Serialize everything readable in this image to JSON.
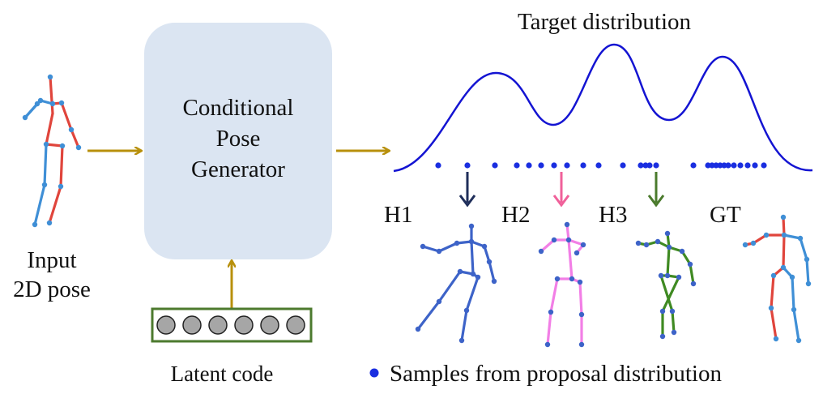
{
  "input_label": {
    "line1": "Input",
    "line2": "2D pose"
  },
  "generator_label": {
    "line1": "Conditional",
    "line2": "Pose",
    "line3": "Generator"
  },
  "latent_label": "Latent code",
  "latent_cells": 6,
  "target_label": "Target distribution",
  "hypotheses": [
    {
      "label": "H1",
      "color": "#1f2e5a"
    },
    {
      "label": "H2",
      "color": "#f0609a"
    },
    {
      "label": "H3",
      "color": "#4a7a2c"
    },
    {
      "label": "GT",
      "color": ""
    }
  ],
  "legend_label": "Samples from proposal distribution",
  "colors": {
    "arrow_gold": "#b8900c",
    "box_fill": "#dbe5f2",
    "latent_border": "#4c7a2e",
    "latent_cell": "#a6a6a6",
    "curve": "#1414d2",
    "sample_dot": "#1a2ee0",
    "pose_blue": "#3f8fd6",
    "pose_red": "#e0453c",
    "h1_pose": "#3d63c8",
    "h2_pose": "#f27fe6",
    "h3_pose": "#3f8a22"
  }
}
